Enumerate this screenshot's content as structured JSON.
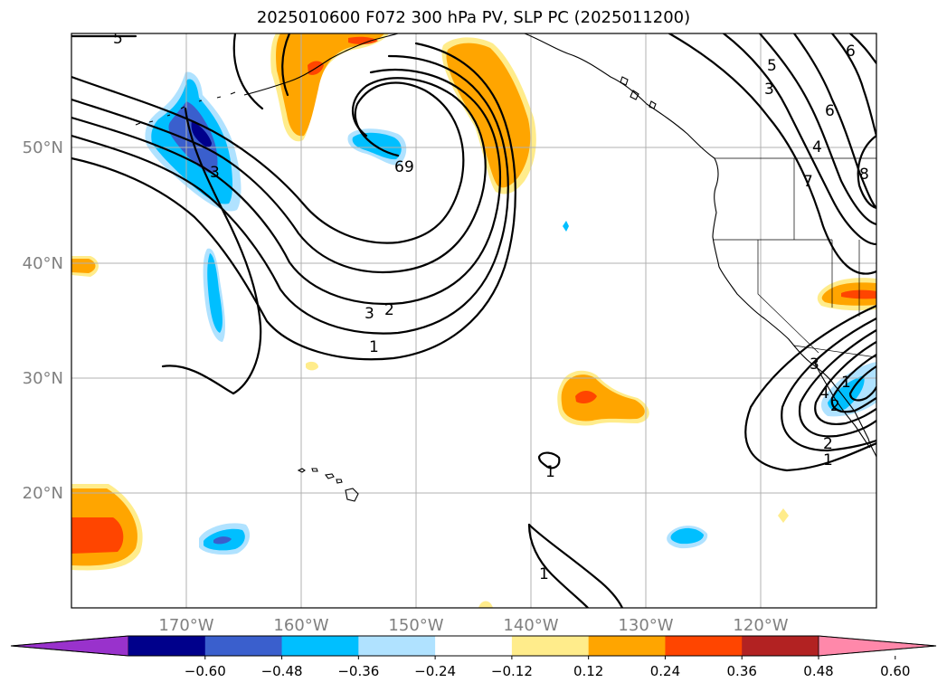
{
  "title": "2025010600 F072 300 hPa PV, SLP PC (2025011200)",
  "map": {
    "lon_range": [
      -180,
      -110
    ],
    "lat_range": [
      10,
      60
    ],
    "lon_ticks": [
      {
        "value": -170,
        "label": "170°W"
      },
      {
        "value": -160,
        "label": "160°W"
      },
      {
        "value": -150,
        "label": "150°W"
      },
      {
        "value": -140,
        "label": "140°W"
      },
      {
        "value": -130,
        "label": "130°W"
      },
      {
        "value": -120,
        "label": "120°W"
      }
    ],
    "lat_ticks": [
      {
        "value": 50,
        "label": "50°N"
      },
      {
        "value": 40,
        "label": "40°N"
      },
      {
        "value": 30,
        "label": "30°N"
      },
      {
        "value": 20,
        "label": "20°N"
      }
    ],
    "grid": true,
    "contour_labels": [
      "5",
      "3",
      "6",
      "9",
      "3",
      "2",
      "1",
      "1",
      "1",
      "2",
      "1",
      "5",
      "3",
      "6",
      "4",
      "7",
      "8",
      "6",
      "4",
      "3",
      "2",
      "1"
    ]
  },
  "colorbar": {
    "ticks": [
      "−0.60",
      "−0.48",
      "−0.36",
      "−0.24",
      "−0.12",
      "0.12",
      "0.24",
      "0.36",
      "0.48",
      "0.60"
    ],
    "colors": [
      "#9932cc",
      "#00008b",
      "#3a5fcd",
      "#00bfff",
      "#b0e2ff",
      "#ffffff",
      "#ffec8b",
      "#ffa500",
      "#ff4500",
      "#b22222",
      "#ff88aa"
    ]
  }
}
